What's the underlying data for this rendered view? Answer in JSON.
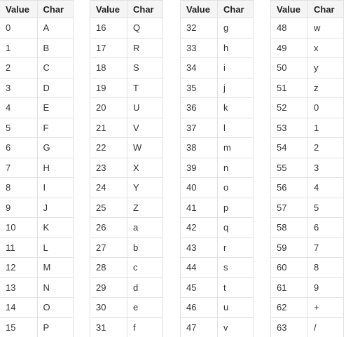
{
  "headers": {
    "value": "Value",
    "char": "Char"
  },
  "tables": [
    {
      "rows": [
        [
          "0",
          "A"
        ],
        [
          "1",
          "B"
        ],
        [
          "2",
          "C"
        ],
        [
          "3",
          "D"
        ],
        [
          "4",
          "E"
        ],
        [
          "5",
          "F"
        ],
        [
          "6",
          "G"
        ],
        [
          "7",
          "H"
        ],
        [
          "8",
          "I"
        ],
        [
          "9",
          "J"
        ],
        [
          "10",
          "K"
        ],
        [
          "11",
          "L"
        ],
        [
          "12",
          "M"
        ],
        [
          "13",
          "N"
        ],
        [
          "14",
          "O"
        ],
        [
          "15",
          "P"
        ]
      ]
    },
    {
      "rows": [
        [
          "16",
          "Q"
        ],
        [
          "17",
          "R"
        ],
        [
          "18",
          "S"
        ],
        [
          "19",
          "T"
        ],
        [
          "20",
          "U"
        ],
        [
          "21",
          "V"
        ],
        [
          "22",
          "W"
        ],
        [
          "23",
          "X"
        ],
        [
          "24",
          "Y"
        ],
        [
          "25",
          "Z"
        ],
        [
          "26",
          "a"
        ],
        [
          "27",
          "b"
        ],
        [
          "28",
          "c"
        ],
        [
          "29",
          "d"
        ],
        [
          "30",
          "e"
        ],
        [
          "31",
          "f"
        ]
      ]
    },
    {
      "rows": [
        [
          "32",
          "g"
        ],
        [
          "33",
          "h"
        ],
        [
          "34",
          "i"
        ],
        [
          "35",
          "j"
        ],
        [
          "36",
          "k"
        ],
        [
          "37",
          "l"
        ],
        [
          "38",
          "m"
        ],
        [
          "39",
          "n"
        ],
        [
          "40",
          "o"
        ],
        [
          "41",
          "p"
        ],
        [
          "42",
          "q"
        ],
        [
          "43",
          "r"
        ],
        [
          "44",
          "s"
        ],
        [
          "45",
          "t"
        ],
        [
          "46",
          "u"
        ],
        [
          "47",
          "v"
        ]
      ]
    },
    {
      "rows": [
        [
          "48",
          "w"
        ],
        [
          "49",
          "x"
        ],
        [
          "50",
          "y"
        ],
        [
          "51",
          "z"
        ],
        [
          "52",
          "0"
        ],
        [
          "53",
          "1"
        ],
        [
          "54",
          "2"
        ],
        [
          "55",
          "3"
        ],
        [
          "56",
          "4"
        ],
        [
          "57",
          "5"
        ],
        [
          "58",
          "6"
        ],
        [
          "59",
          "7"
        ],
        [
          "60",
          "8"
        ],
        [
          "61",
          "9"
        ],
        [
          "62",
          "+"
        ],
        [
          "63",
          "/"
        ]
      ]
    }
  ]
}
